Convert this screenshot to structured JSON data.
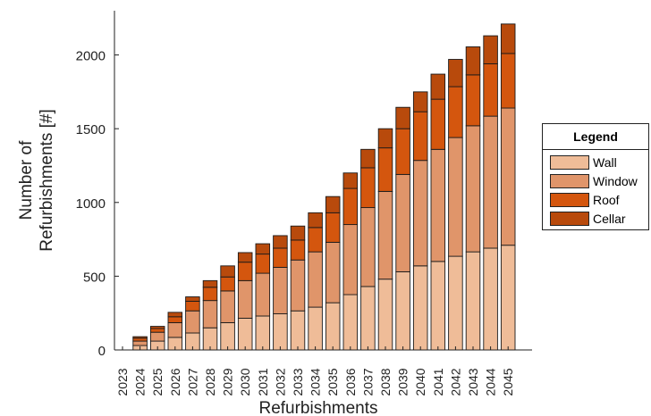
{
  "chart_data": {
    "type": "bar",
    "stacked": true,
    "title": "",
    "xlabel": "Refurbishments",
    "ylabel": "Number of\nRefurbishments [#]",
    "ylim": [
      0,
      2300
    ],
    "yticks": [
      0,
      500,
      1000,
      1500,
      2000
    ],
    "grid": false,
    "legend_position": "right",
    "legend_title": "Legend",
    "categories": [
      "2023",
      "2024",
      "2025",
      "2026",
      "2027",
      "2028",
      "2029",
      "2030",
      "2031",
      "2032",
      "2033",
      "2034",
      "2035",
      "2036",
      "2037",
      "2038",
      "2039",
      "2040",
      "2041",
      "2042",
      "2043",
      "2044",
      "2045"
    ],
    "series": [
      {
        "name": "Wall",
        "color": "#efbc98",
        "values": [
          0,
          30,
          60,
          85,
          115,
          150,
          185,
          215,
          230,
          245,
          265,
          290,
          320,
          375,
          430,
          480,
          530,
          570,
          600,
          635,
          665,
          690,
          710
        ]
      },
      {
        "name": "Window",
        "color": "#e0956a",
        "values": [
          0,
          30,
          60,
          100,
          150,
          185,
          215,
          255,
          290,
          315,
          345,
          375,
          410,
          475,
          535,
          595,
          660,
          715,
          760,
          805,
          855,
          895,
          930
        ]
      },
      {
        "name": "Roof",
        "color": "#d4560e",
        "values": [
          0,
          20,
          25,
          40,
          65,
          90,
          95,
          125,
          130,
          130,
          135,
          165,
          200,
          245,
          270,
          295,
          310,
          330,
          340,
          345,
          345,
          355,
          370
        ]
      },
      {
        "name": "Cellar",
        "color": "#b84a0c",
        "values": [
          0,
          10,
          15,
          30,
          30,
          45,
          75,
          65,
          70,
          85,
          95,
          100,
          110,
          105,
          125,
          130,
          145,
          135,
          170,
          185,
          190,
          190,
          200
        ]
      }
    ]
  }
}
